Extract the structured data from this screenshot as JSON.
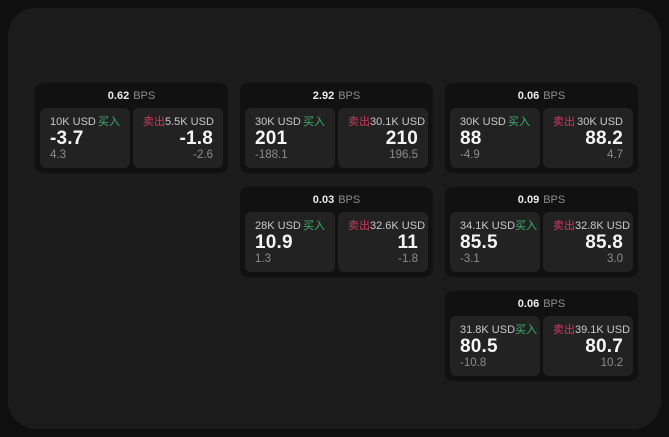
{
  "page": {
    "bps_suffix": "BPS"
  },
  "labels": {
    "buy": "买入",
    "sell": "卖出"
  },
  "colors": {
    "buy": "#3fb068",
    "sell": "#c93a5b"
  },
  "cards": [
    {
      "row": 1,
      "col": 1,
      "bps": "0.62",
      "buy": {
        "amount": "10K USD",
        "value": "-3.7",
        "sub": "4.3"
      },
      "sell": {
        "amount": "5.5K USD",
        "value": "-1.8",
        "sub": "-2.6"
      }
    },
    {
      "row": 1,
      "col": 2,
      "bps": "2.92",
      "buy": {
        "amount": "30K USD",
        "value": "201",
        "sub": "-188.1"
      },
      "sell": {
        "amount": "30.1K USD",
        "value": "210",
        "sub": "196.5"
      }
    },
    {
      "row": 1,
      "col": 3,
      "bps": "0.06",
      "buy": {
        "amount": "30K USD",
        "value": "88",
        "sub": "-4.9"
      },
      "sell": {
        "amount": "30K USD",
        "value": "88.2",
        "sub": "4.7"
      }
    },
    {
      "row": 2,
      "col": 2,
      "bps": "0.03",
      "buy": {
        "amount": "28K USD",
        "value": "10.9",
        "sub": "1.3"
      },
      "sell": {
        "amount": "32.6K USD",
        "value": "11",
        "sub": "-1.8"
      }
    },
    {
      "row": 2,
      "col": 3,
      "bps": "0.09",
      "buy": {
        "amount": "34.1K USD",
        "value": "85.5",
        "sub": "-3.1"
      },
      "sell": {
        "amount": "32.8K USD",
        "value": "85.8",
        "sub": "3.0"
      }
    },
    {
      "row": 3,
      "col": 3,
      "bps": "0.06",
      "buy": {
        "amount": "31.8K USD",
        "value": "80.5",
        "sub": "-10.8"
      },
      "sell": {
        "amount": "39.1K USD",
        "value": "80.7",
        "sub": "10.2"
      }
    }
  ]
}
